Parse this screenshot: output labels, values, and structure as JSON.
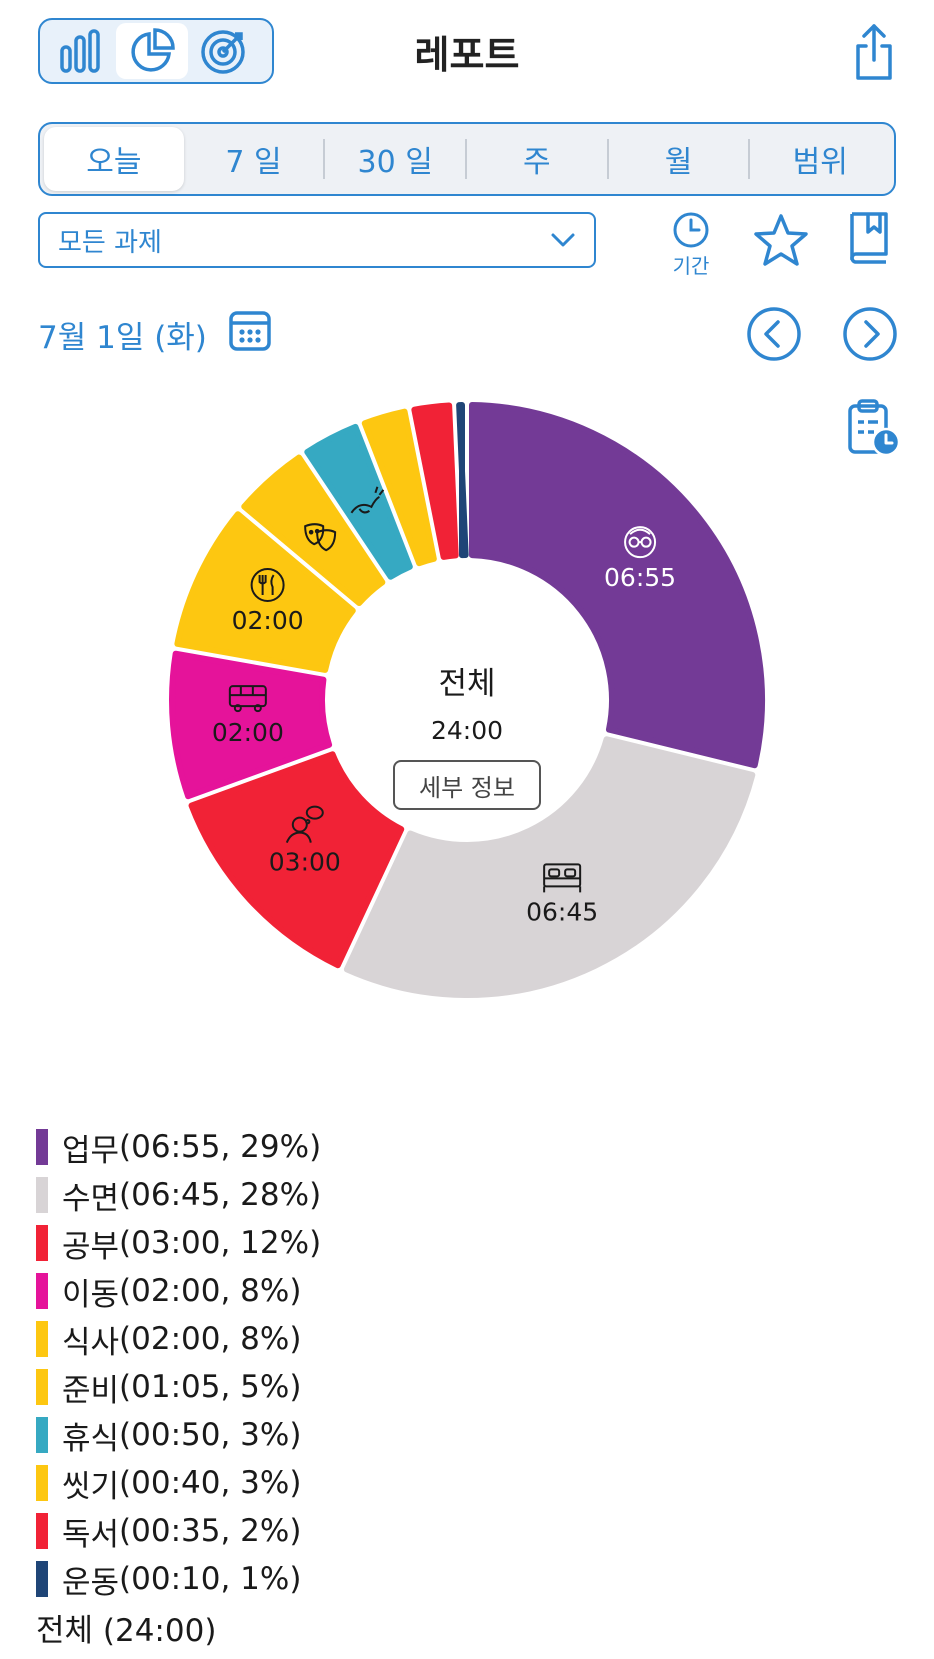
{
  "header": {
    "title": "레포트"
  },
  "view_modes": [
    {
      "icon": "bar-chart-icon",
      "active": false
    },
    {
      "icon": "pie-chart-icon",
      "active": true
    },
    {
      "icon": "target-icon",
      "active": false
    }
  ],
  "ranges": [
    {
      "label": "오늘",
      "active": true
    },
    {
      "label": "7 일",
      "active": false
    },
    {
      "label": "30 일",
      "active": false
    },
    {
      "label": "주",
      "active": false
    },
    {
      "label": "월",
      "active": false
    },
    {
      "label": "범위",
      "active": false
    }
  ],
  "filter": {
    "task_value": "모든 과제",
    "period_label": "기간"
  },
  "date": {
    "label": "7월 1일 (화)"
  },
  "center": {
    "title": "전체",
    "total": "24:00",
    "detail_label": "세부 정보"
  },
  "colors": {
    "accent": "#2f86d0"
  },
  "chart_data": {
    "type": "pie",
    "unit": "minutes",
    "slices": [
      {
        "name": "업무",
        "minutes": 415,
        "time": "06:55",
        "percent": 29,
        "color": "#733a96",
        "icon": "person-glasses-icon",
        "label": "06:55"
      },
      {
        "name": "수면",
        "minutes": 405,
        "time": "06:45",
        "percent": 28,
        "color": "#d8d4d6",
        "icon": "bed-icon",
        "label": "06:45"
      },
      {
        "name": "공부",
        "minutes": 180,
        "time": "03:00",
        "percent": 12,
        "color": "#f12236",
        "icon": "person-thinking-icon",
        "label": "03:00"
      },
      {
        "name": "이동",
        "minutes": 120,
        "time": "02:00",
        "percent": 8,
        "color": "#e5139a",
        "icon": "bus-icon",
        "label": "02:00"
      },
      {
        "name": "식사",
        "minutes": 120,
        "time": "02:00",
        "percent": 8,
        "color": "#fdc711",
        "icon": "fork-knife-icon",
        "label": "02:00"
      },
      {
        "name": "준비",
        "minutes": 65,
        "time": "01:05",
        "percent": 5,
        "color": "#fdc711",
        "icon": "theater-masks-icon",
        "label": ""
      },
      {
        "name": "휴식",
        "minutes": 50,
        "time": "00:50",
        "percent": 3,
        "color": "#36a9c2",
        "icon": "bird-icon",
        "label": ""
      },
      {
        "name": "씻기",
        "minutes": 40,
        "time": "00:40",
        "percent": 3,
        "color": "#fdc711",
        "icon": "",
        "label": ""
      },
      {
        "name": "독서",
        "minutes": 35,
        "time": "00:35",
        "percent": 2,
        "color": "#f12236",
        "icon": "",
        "label": ""
      },
      {
        "name": "운동",
        "minutes": 10,
        "time": "00:10",
        "percent": 1,
        "color": "#1f4577",
        "icon": "",
        "label": ""
      }
    ],
    "total_label": "전체 (24:00)"
  }
}
